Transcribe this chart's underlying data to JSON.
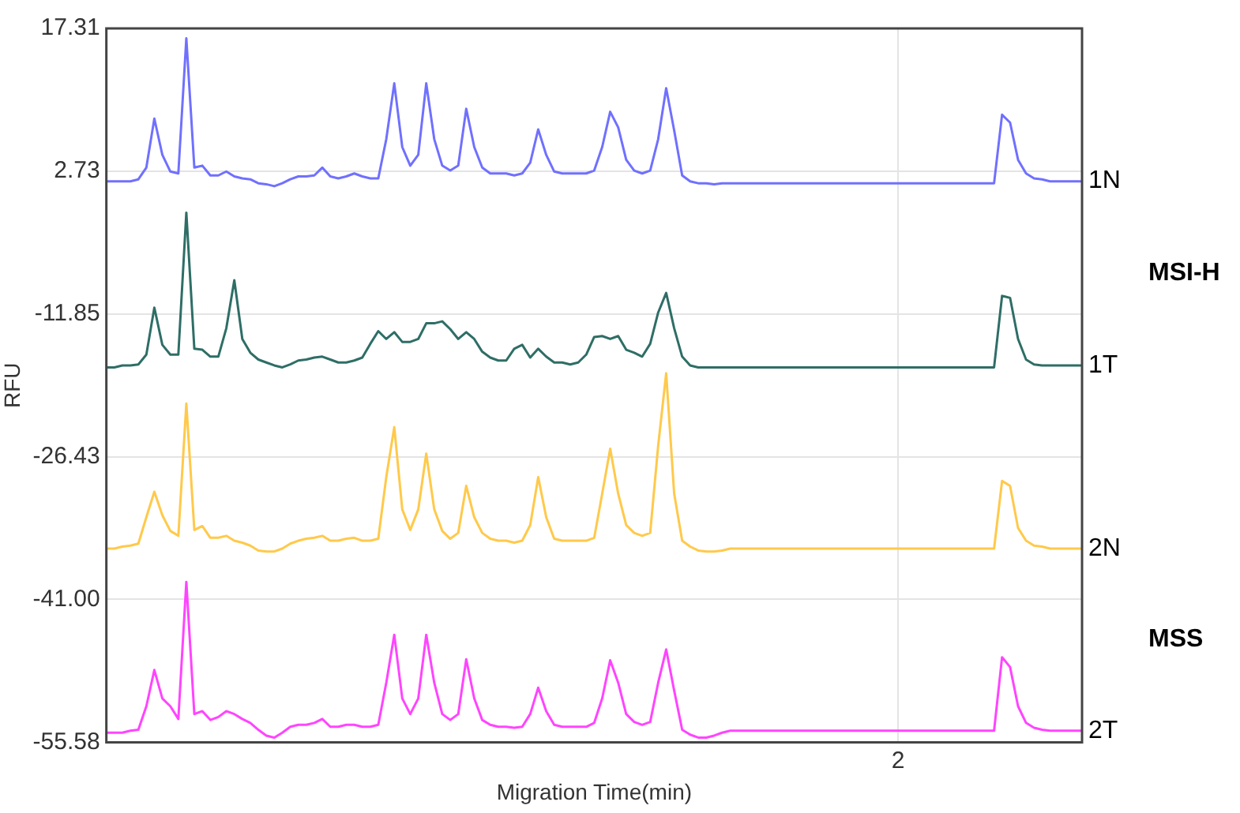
{
  "chart_data": {
    "type": "line",
    "xlabel": "Migration Time(min)",
    "ylabel": "RFU",
    "categories": [
      null,
      null,
      null,
      null,
      null,
      null,
      null,
      null,
      null,
      null,
      null,
      null,
      null,
      null,
      null,
      null,
      null,
      null,
      null,
      null,
      null,
      null,
      null,
      null,
      null,
      null,
      null,
      null,
      null,
      null,
      null,
      null,
      null,
      null,
      null,
      null,
      null,
      null,
      null,
      null,
      null,
      null,
      null,
      null,
      null,
      null,
      null,
      null,
      null,
      null,
      null,
      null,
      null,
      null,
      null,
      null,
      null,
      null,
      null,
      null,
      null,
      null,
      null,
      null,
      null,
      null,
      null,
      null,
      null,
      null,
      null,
      null,
      null,
      null,
      null,
      null,
      null,
      null,
      null,
      null,
      null,
      null,
      null,
      null,
      null,
      null,
      null,
      null,
      null,
      null,
      null,
      null,
      null,
      null,
      null,
      null,
      null,
      null,
      null,
      "2",
      null,
      null,
      null,
      null,
      null,
      null,
      null,
      null,
      null,
      null,
      null,
      null,
      null,
      null,
      null,
      null,
      null,
      null,
      null,
      null,
      null,
      null,
      null
    ],
    "series": [
      {
        "name": "1N",
        "color": "#7070ff",
        "values": [
          1.7,
          1.7,
          1.7,
          1.7,
          1.9,
          3.1,
          8.1,
          4.4,
          2.7,
          2.5,
          16.3,
          3.1,
          3.3,
          2.3,
          2.3,
          2.7,
          2.2,
          2.0,
          1.9,
          1.5,
          1.4,
          1.2,
          1.5,
          1.9,
          2.2,
          2.2,
          2.3,
          3.1,
          2.2,
          2.0,
          2.2,
          2.5,
          2.2,
          2.0,
          2.0,
          6.0,
          11.7,
          5.2,
          3.3,
          4.4,
          11.7,
          6.0,
          3.3,
          2.8,
          3.3,
          9.1,
          5.2,
          3.1,
          2.5,
          2.5,
          2.5,
          2.3,
          2.5,
          3.6,
          7.0,
          4.4,
          2.7,
          2.5,
          2.5,
          2.5,
          2.5,
          2.8,
          5.2,
          8.8,
          7.2,
          3.9,
          2.8,
          2.5,
          2.8,
          6.0,
          11.2,
          6.9,
          2.3,
          1.7,
          1.5,
          1.5,
          1.4,
          1.5,
          1.5,
          1.5,
          1.5,
          1.5,
          1.5,
          1.5,
          1.5,
          1.5,
          1.5,
          1.5,
          1.5,
          1.5,
          1.5,
          1.5,
          1.5,
          1.5,
          1.5,
          1.5,
          1.5,
          1.5,
          1.5,
          1.5,
          1.5,
          1.5,
          1.5,
          1.5,
          1.5,
          1.5,
          1.5,
          1.5,
          1.5,
          1.5,
          1.5,
          1.5,
          8.5,
          7.7,
          3.9,
          2.5,
          2.0,
          1.9,
          1.7,
          1.7,
          1.7,
          1.7,
          1.7
        ]
      },
      {
        "name": "1T",
        "color": "#2e6e66",
        "values": [
          -17.3,
          -17.3,
          -17.1,
          -17.1,
          -17.0,
          -16.0,
          -11.2,
          -15.0,
          -16.0,
          -16.0,
          -1.5,
          -15.4,
          -15.5,
          -16.2,
          -16.2,
          -13.3,
          -8.4,
          -14.4,
          -15.8,
          -16.5,
          -16.8,
          -17.1,
          -17.3,
          -17.0,
          -16.6,
          -16.5,
          -16.3,
          -16.2,
          -16.5,
          -16.8,
          -16.8,
          -16.6,
          -16.3,
          -14.9,
          -13.6,
          -14.4,
          -13.7,
          -14.7,
          -14.7,
          -14.4,
          -12.8,
          -12.8,
          -12.6,
          -13.4,
          -14.4,
          -13.7,
          -14.4,
          -15.7,
          -16.3,
          -16.6,
          -16.6,
          -15.4,
          -15.0,
          -16.3,
          -15.4,
          -16.2,
          -16.8,
          -16.8,
          -17.0,
          -16.8,
          -16.0,
          -14.2,
          -14.1,
          -14.4,
          -14.1,
          -15.5,
          -15.8,
          -16.2,
          -14.9,
          -11.7,
          -9.7,
          -13.3,
          -16.2,
          -17.1,
          -17.3,
          -17.3,
          -17.3,
          -17.3,
          -17.3,
          -17.3,
          -17.3,
          -17.3,
          -17.3,
          -17.3,
          -17.3,
          -17.3,
          -17.3,
          -17.3,
          -17.3,
          -17.3,
          -17.3,
          -17.3,
          -17.3,
          -17.3,
          -17.3,
          -17.3,
          -17.3,
          -17.3,
          -17.3,
          -17.3,
          -17.3,
          -17.3,
          -17.3,
          -17.3,
          -17.3,
          -17.3,
          -17.3,
          -17.3,
          -17.3,
          -17.3,
          -17.3,
          -17.3,
          -10.0,
          -10.2,
          -14.4,
          -16.5,
          -17.0,
          -17.1,
          -17.1,
          -17.1,
          -17.1,
          -17.1,
          -17.1
        ]
      },
      {
        "name": "2N",
        "color": "#ffc94a",
        "values": [
          -35.8,
          -35.8,
          -35.6,
          -35.5,
          -35.3,
          -32.6,
          -30.0,
          -32.4,
          -34.0,
          -34.5,
          -21.0,
          -33.9,
          -33.5,
          -34.7,
          -34.7,
          -34.5,
          -35.0,
          -35.2,
          -35.5,
          -36.0,
          -36.1,
          -36.1,
          -35.8,
          -35.3,
          -35.0,
          -34.8,
          -34.7,
          -34.5,
          -35.0,
          -35.0,
          -34.8,
          -34.7,
          -35.0,
          -35.0,
          -34.8,
          -28.5,
          -23.4,
          -31.8,
          -33.9,
          -31.8,
          -26.1,
          -31.8,
          -34.0,
          -34.8,
          -34.2,
          -29.4,
          -32.6,
          -34.2,
          -34.8,
          -35.0,
          -35.0,
          -35.2,
          -35.0,
          -33.4,
          -28.5,
          -32.6,
          -34.8,
          -35.0,
          -35.0,
          -35.0,
          -35.0,
          -34.7,
          -30.2,
          -25.6,
          -30.2,
          -33.4,
          -34.2,
          -34.5,
          -34.2,
          -25.3,
          -17.9,
          -30.2,
          -35.0,
          -35.6,
          -36.0,
          -36.1,
          -36.1,
          -36.0,
          -35.8,
          -35.8,
          -35.8,
          -35.8,
          -35.8,
          -35.8,
          -35.8,
          -35.8,
          -35.8,
          -35.8,
          -35.8,
          -35.8,
          -35.8,
          -35.8,
          -35.8,
          -35.8,
          -35.8,
          -35.8,
          -35.8,
          -35.8,
          -35.8,
          -35.8,
          -35.8,
          -35.8,
          -35.8,
          -35.8,
          -35.8,
          -35.8,
          -35.8,
          -35.8,
          -35.8,
          -35.8,
          -35.8,
          -35.8,
          -28.9,
          -29.4,
          -33.7,
          -35.0,
          -35.5,
          -35.6,
          -35.8,
          -35.8,
          -35.8,
          -35.8,
          -35.8
        ]
      },
      {
        "name": "2T",
        "color": "#ff44ff",
        "values": [
          -54.6,
          -54.6,
          -54.6,
          -54.4,
          -54.3,
          -51.9,
          -48.2,
          -51.1,
          -51.9,
          -53.2,
          -39.2,
          -52.7,
          -52.4,
          -53.3,
          -53.0,
          -52.4,
          -52.7,
          -53.2,
          -53.6,
          -54.3,
          -54.9,
          -55.1,
          -54.6,
          -54.0,
          -53.8,
          -53.8,
          -53.6,
          -53.2,
          -54.0,
          -54.0,
          -53.8,
          -53.8,
          -54.0,
          -54.0,
          -53.8,
          -49.5,
          -44.6,
          -51.1,
          -52.7,
          -51.1,
          -44.6,
          -49.5,
          -52.7,
          -53.3,
          -52.7,
          -47.1,
          -51.1,
          -53.3,
          -53.8,
          -54.0,
          -54.0,
          -54.1,
          -54.0,
          -52.7,
          -50.0,
          -52.4,
          -53.8,
          -54.0,
          -54.0,
          -54.0,
          -54.0,
          -53.6,
          -51.1,
          -47.2,
          -49.5,
          -52.7,
          -53.5,
          -53.8,
          -53.5,
          -49.5,
          -46.1,
          -50.3,
          -54.3,
          -54.8,
          -55.1,
          -55.1,
          -54.9,
          -54.6,
          -54.4,
          -54.4,
          -54.4,
          -54.4,
          -54.4,
          -54.4,
          -54.4,
          -54.4,
          -54.4,
          -54.4,
          -54.4,
          -54.4,
          -54.4,
          -54.4,
          -54.4,
          -54.4,
          -54.4,
          -54.4,
          -54.4,
          -54.4,
          -54.4,
          -54.4,
          -54.4,
          -54.4,
          -54.4,
          -54.4,
          -54.4,
          -54.4,
          -54.4,
          -54.4,
          -54.4,
          -54.4,
          -54.4,
          -54.4,
          -46.9,
          -47.9,
          -51.9,
          -53.6,
          -54.1,
          -54.3,
          -54.4,
          -54.4,
          -54.4,
          -54.4,
          -54.4
        ]
      }
    ],
    "annotations": [
      "MSI-H",
      "MSS"
    ],
    "ylim": [
      -55.58,
      17.31
    ],
    "yticks": [
      {
        "value": -55.58,
        "label": "-55.58"
      },
      {
        "value": -41,
        "label": "-41.00"
      },
      {
        "value": -26.43,
        "label": "-26.43"
      },
      {
        "value": -11.85,
        "label": "-11.85"
      },
      {
        "value": 2.73,
        "label": "2.73"
      },
      {
        "value": 17.31,
        "label": "17.31"
      }
    ],
    "grid": true,
    "marker": "none",
    "line_style": "solid"
  }
}
